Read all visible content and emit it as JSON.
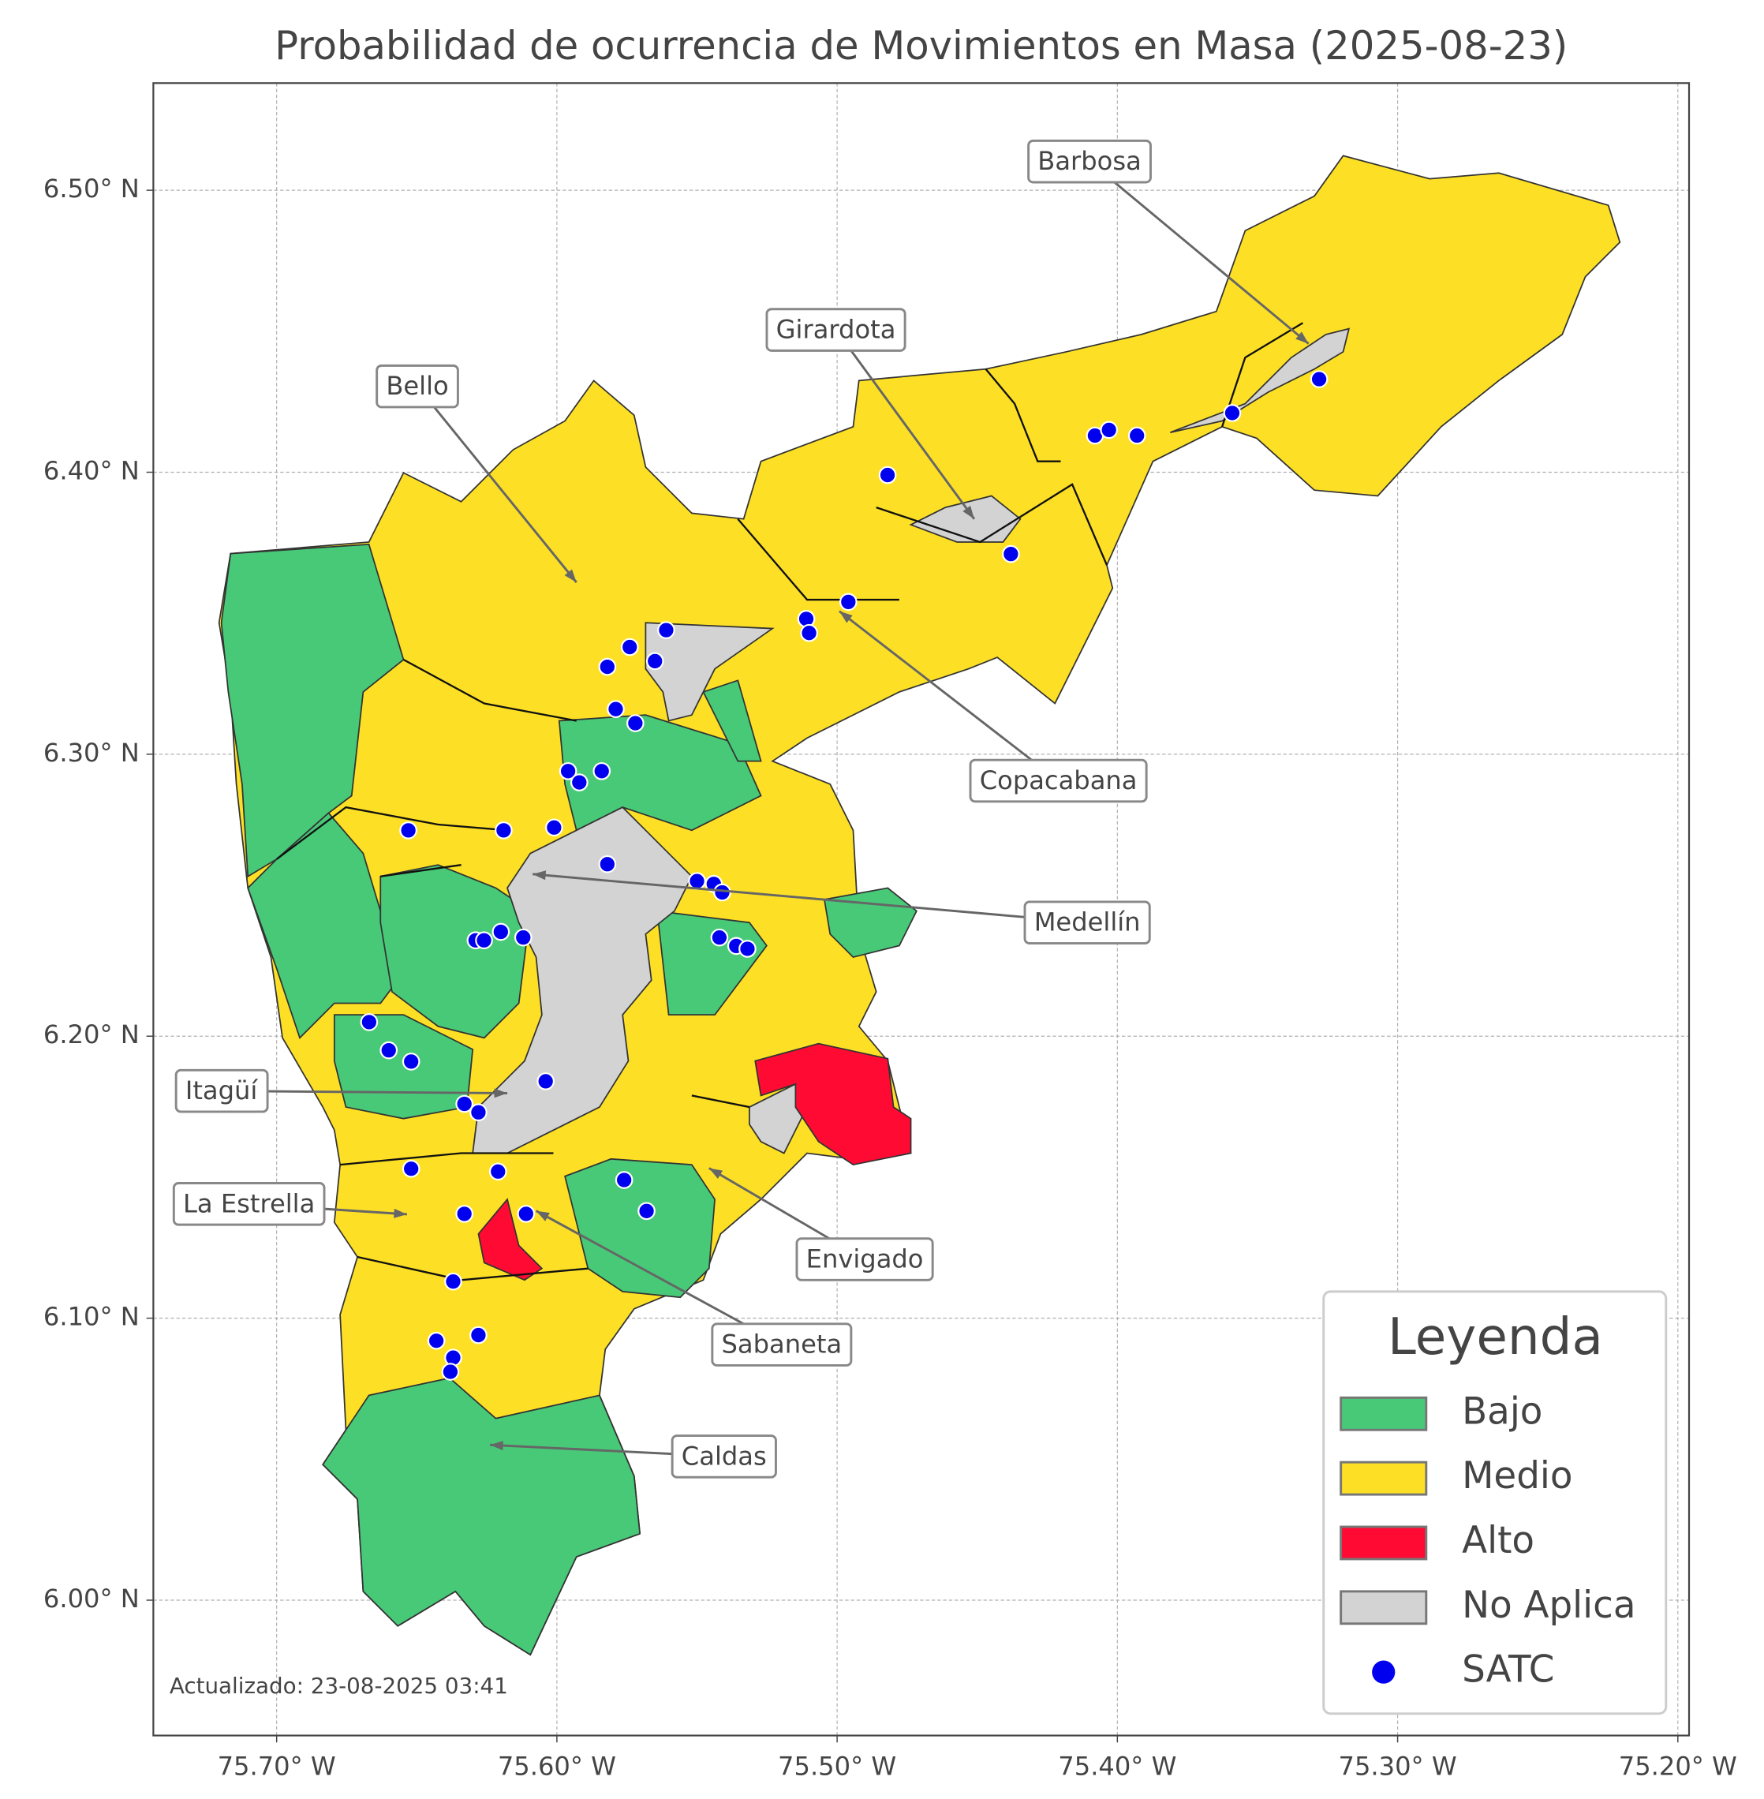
{
  "chart_data": {
    "type": "map",
    "title": "Probabilidad de ocurrencia de Movimientos en Masa (2025-08-23)",
    "footnote": "Actualizado: 23-08-2025 03:41",
    "xlim": [
      -75.744,
      -75.196
    ],
    "ylim": [
      5.952,
      6.538
    ],
    "xticks": [
      {
        "value": -75.7,
        "label": "75.70° W"
      },
      {
        "value": -75.6,
        "label": "75.60° W"
      },
      {
        "value": -75.5,
        "label": "75.50° W"
      },
      {
        "value": -75.4,
        "label": "75.40° W"
      },
      {
        "value": -75.3,
        "label": "75.30° W"
      },
      {
        "value": -75.2,
        "label": "75.20° W"
      }
    ],
    "yticks": [
      {
        "value": 6.0,
        "label": "6.00° N"
      },
      {
        "value": 6.1,
        "label": "6.10° N"
      },
      {
        "value": 6.2,
        "label": "6.20° N"
      },
      {
        "value": 6.3,
        "label": "6.30° N"
      },
      {
        "value": 6.4,
        "label": "6.40° N"
      },
      {
        "value": 6.5,
        "label": "6.50° N"
      }
    ],
    "grid": true,
    "legend": {
      "title": "Leyenda",
      "position": "lower right"
    },
    "categories": [
      {
        "name": "Bajo",
        "color": "#47c978"
      },
      {
        "name": "Medio",
        "color": "#fde025"
      },
      {
        "name": "Alto",
        "color": "#ff0a32"
      },
      {
        "name": "No Aplica",
        "color": "#d3d3d3"
      }
    ],
    "series": [
      {
        "name": "SATC",
        "color": "#0000ee",
        "x": [
          -75.482,
          -75.408,
          -75.403,
          -75.393,
          -75.359,
          -75.328,
          -75.438,
          -75.496,
          -75.511,
          -75.51,
          -75.561,
          -75.574,
          -75.582,
          -75.565,
          -75.579,
          -75.572,
          -75.596,
          -75.592,
          -75.584,
          -75.653,
          -75.619,
          -75.601,
          -75.582,
          -75.55,
          -75.544,
          -75.541,
          -75.629,
          -75.626,
          -75.62,
          -75.612,
          -75.542,
          -75.536,
          -75.532,
          -75.667,
          -75.66,
          -75.652,
          -75.604,
          -75.633,
          -75.628,
          -75.652,
          -75.621,
          -75.576,
          -75.568,
          -75.633,
          -75.611,
          -75.637,
          -75.643,
          -75.628,
          -75.637,
          -75.638
        ],
        "y": [
          6.399,
          6.413,
          6.415,
          6.413,
          6.421,
          6.433,
          6.371,
          6.354,
          6.348,
          6.343,
          6.344,
          6.338,
          6.331,
          6.333,
          6.316,
          6.311,
          6.294,
          6.29,
          6.294,
          6.273,
          6.273,
          6.274,
          6.261,
          6.255,
          6.254,
          6.251,
          6.234,
          6.234,
          6.237,
          6.235,
          6.235,
          6.232,
          6.231,
          6.205,
          6.195,
          6.191,
          6.184,
          6.176,
          6.173,
          6.153,
          6.152,
          6.149,
          6.138,
          6.137,
          6.137,
          6.113,
          6.092,
          6.094,
          6.086,
          6.081
        ]
      }
    ],
    "annotations": [
      "Barbosa",
      "Girardota",
      "Bello",
      "Copacabana",
      "Medellín",
      "Itagüí",
      "La Estrella",
      "Envigado",
      "Sabaneta",
      "Caldas"
    ]
  }
}
